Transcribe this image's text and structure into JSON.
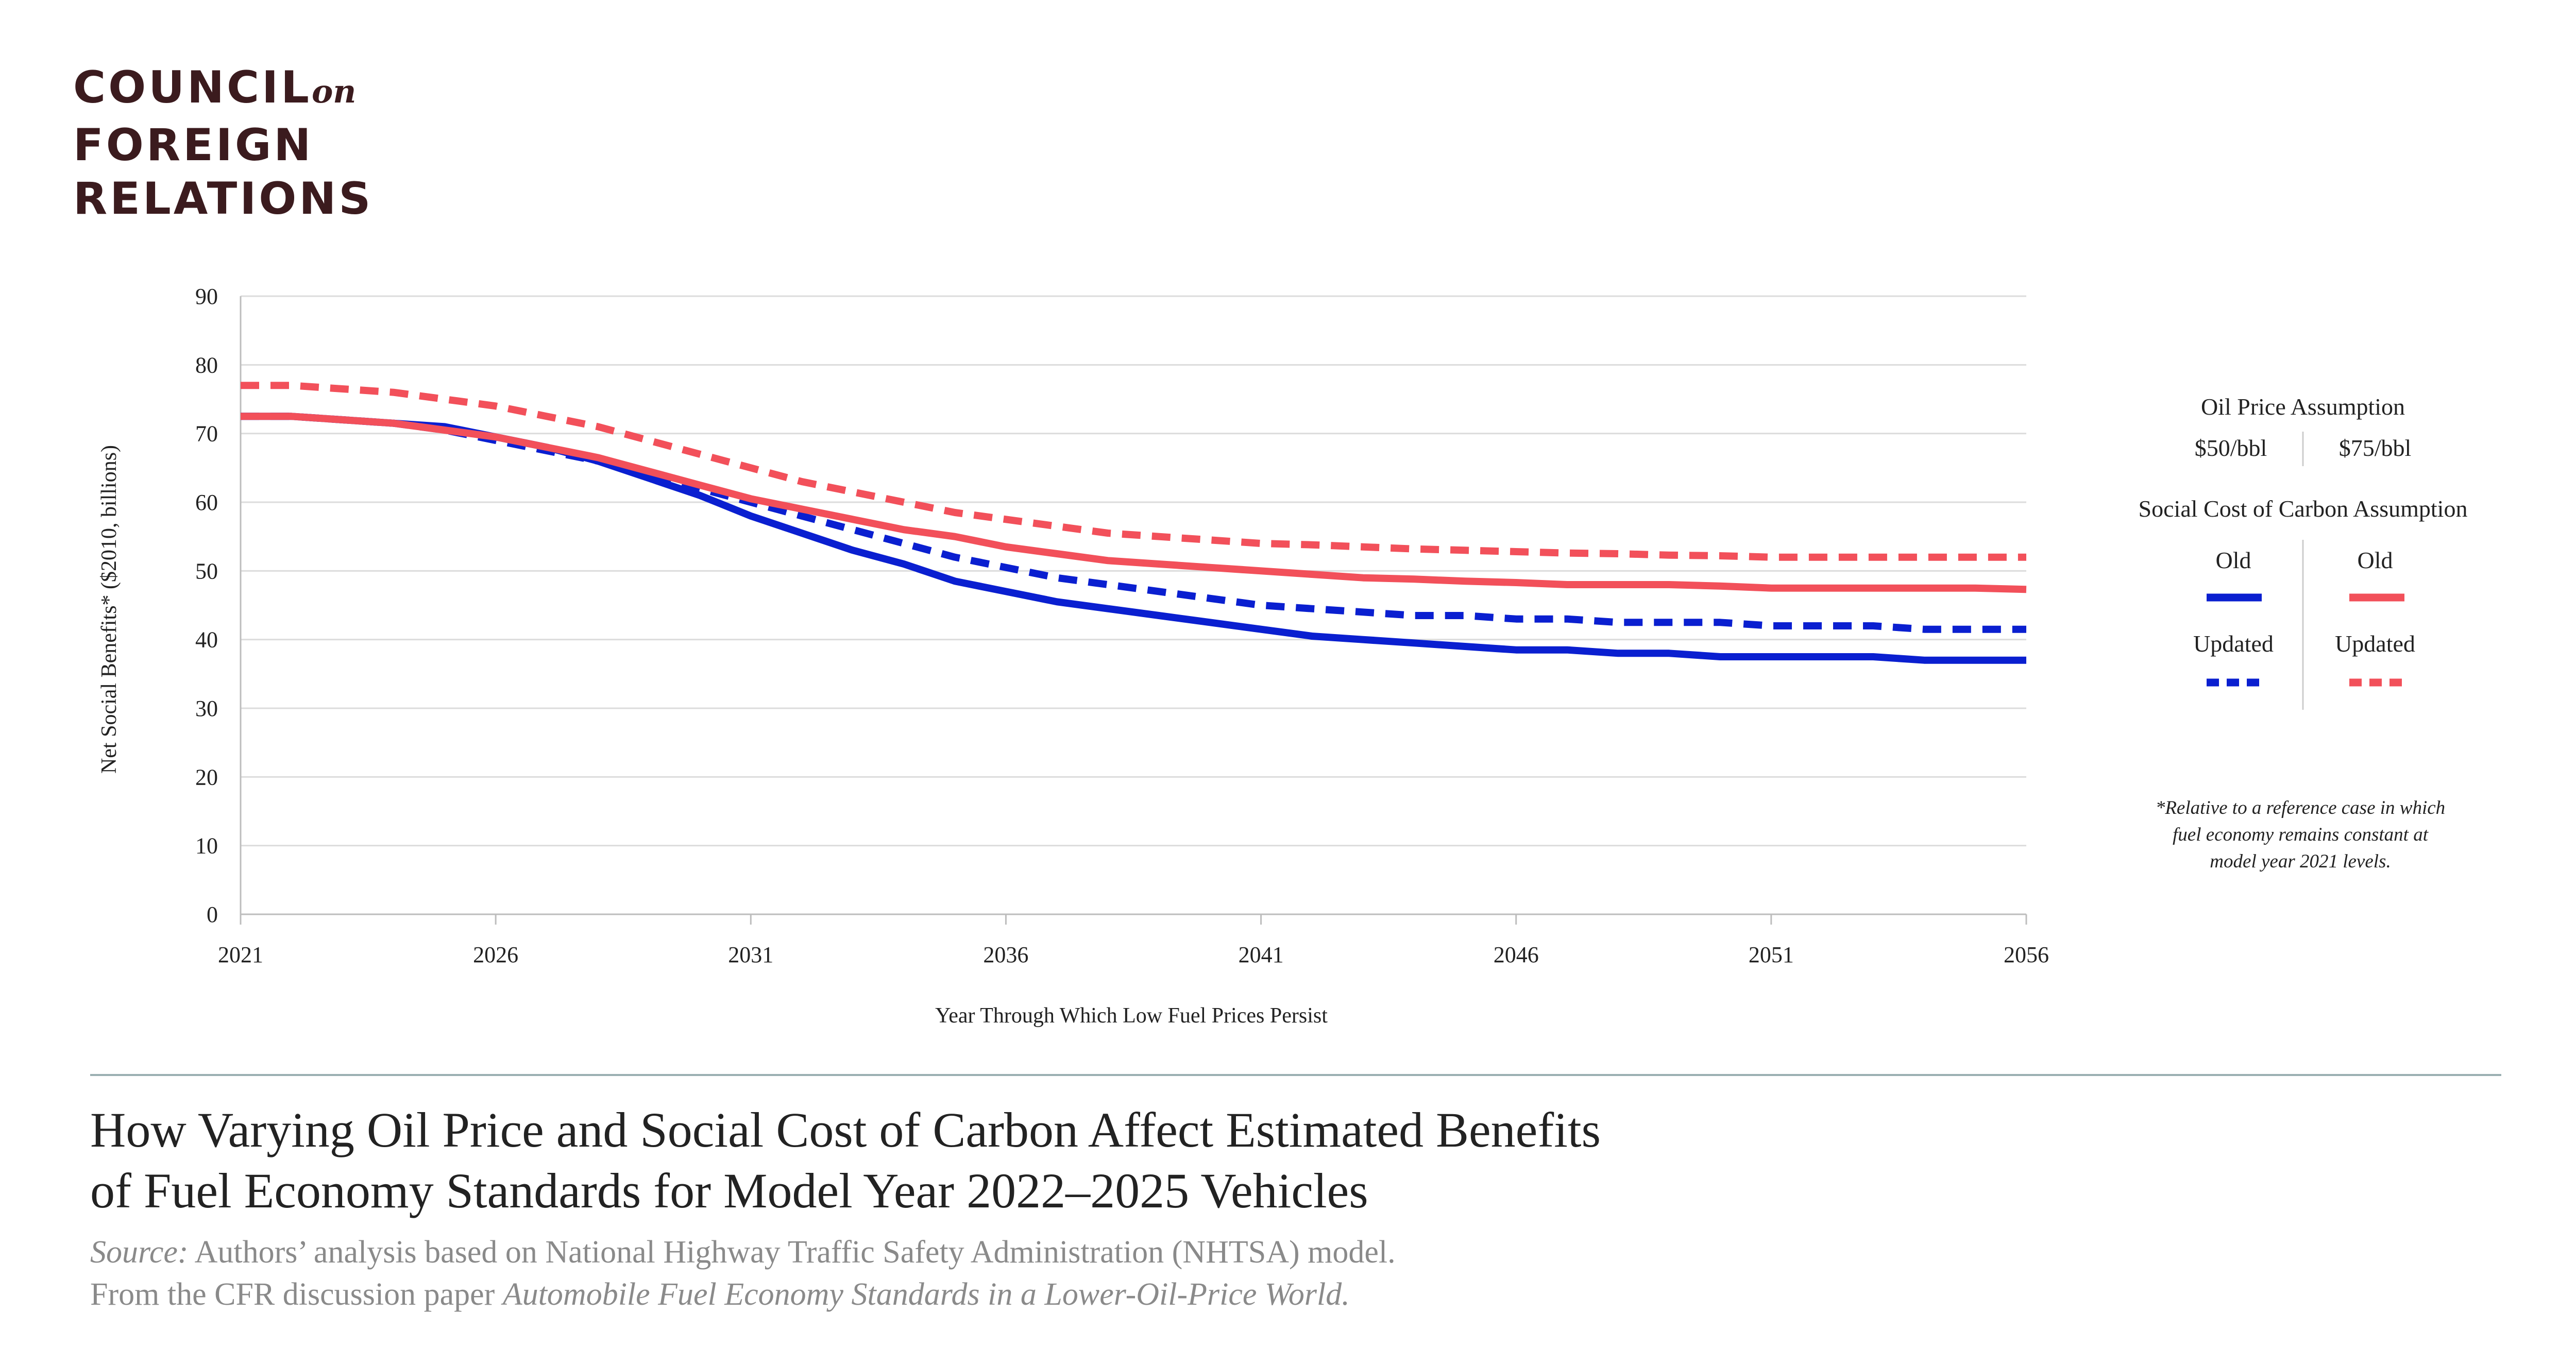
{
  "logo": {
    "line1": "COUNCIL",
    "line1_suffix": "on",
    "line2": "FOREIGN",
    "line3": "RELATIONS"
  },
  "title_line1": "How Varying Oil Price and Social Cost of Carbon Affect Estimated Benefits",
  "title_line2": "of Fuel Economy Standards for Model Year 2022–2025 Vehicles",
  "source": {
    "label": "Source:",
    "text": "Authors’ analysis based on National Highway Traffic Safety Administration (NHTSA) model.",
    "line2_prefix": "From the CFR discussion paper",
    "line2_title": "Automobile Fuel Economy Standards in a Lower-Oil-Price World."
  },
  "legend": {
    "oil_title": "Oil Price Assumption",
    "oil_col1": "$50/bbl",
    "oil_col2": "$75/bbl",
    "scc_title": "Social Cost of Carbon Assumption",
    "old": "Old",
    "updated": "Updated"
  },
  "footnote": [
    "*Relative to a reference case in which",
    "fuel economy remains constant at",
    "model year 2021 levels."
  ],
  "colors": {
    "blue": "#0a1fd0",
    "red": "#f2505a",
    "grid": "#dcdcdc",
    "axis": "#bdbdbd"
  },
  "chart_data": {
    "type": "line",
    "xlabel": "Year Through Which Low Fuel Prices Persist",
    "ylabel": "Net Social Benefits* ($2010, billions)",
    "xlim": [
      2021,
      2056
    ],
    "ylim": [
      0,
      90
    ],
    "xticks": [
      2021,
      2026,
      2031,
      2036,
      2041,
      2046,
      2051,
      2056
    ],
    "yticks": [
      0,
      10,
      20,
      30,
      40,
      50,
      60,
      70,
      80,
      90
    ],
    "grid": true,
    "legend_position": "right",
    "series": [
      {
        "oil": "$50/bbl",
        "carbon": "Old",
        "color": "#0a1fd0",
        "dash": false,
        "x": [
          2021,
          2022,
          2023,
          2024,
          2025,
          2026,
          2027,
          2028,
          2029,
          2030,
          2031,
          2032,
          2033,
          2034,
          2035,
          2036,
          2037,
          2038,
          2039,
          2040,
          2041,
          2042,
          2043,
          2044,
          2045,
          2046,
          2047,
          2048,
          2049,
          2050,
          2051,
          2052,
          2053,
          2054,
          2055,
          2056
        ],
        "y": [
          72.5,
          72.5,
          72,
          71.5,
          71,
          69.5,
          68,
          66,
          63.5,
          61,
          58,
          55.5,
          53,
          51,
          48.5,
          47,
          45.5,
          44.5,
          43.5,
          42.5,
          41.5,
          40.5,
          40,
          39.5,
          39,
          38.5,
          38.5,
          38,
          38,
          37.5,
          37.5,
          37.5,
          37.5,
          37,
          37,
          37
        ]
      },
      {
        "oil": "$50/bbl",
        "carbon": "Updated",
        "color": "#0a1fd0",
        "dash": true,
        "x": [
          2021,
          2022,
          2023,
          2024,
          2025,
          2026,
          2027,
          2028,
          2029,
          2030,
          2031,
          2032,
          2033,
          2034,
          2035,
          2036,
          2037,
          2038,
          2039,
          2040,
          2041,
          2042,
          2043,
          2044,
          2045,
          2046,
          2047,
          2048,
          2049,
          2050,
          2051,
          2052,
          2053,
          2054,
          2055,
          2056
        ],
        "y": [
          72.5,
          72.5,
          72,
          71.5,
          70.5,
          69,
          67.5,
          66,
          64,
          62,
          60,
          58,
          56,
          54,
          52,
          50.5,
          49,
          48,
          47,
          46,
          45,
          44.5,
          44,
          43.5,
          43.5,
          43,
          43,
          42.5,
          42.5,
          42.5,
          42,
          42,
          42,
          41.5,
          41.5,
          41.5
        ]
      },
      {
        "oil": "$75/bbl",
        "carbon": "Old",
        "color": "#f2505a",
        "dash": false,
        "x": [
          2021,
          2022,
          2023,
          2024,
          2025,
          2026,
          2027,
          2028,
          2029,
          2030,
          2031,
          2032,
          2033,
          2034,
          2035,
          2036,
          2037,
          2038,
          2039,
          2040,
          2041,
          2042,
          2043,
          2044,
          2045,
          2046,
          2047,
          2048,
          2049,
          2050,
          2051,
          2052,
          2053,
          2054,
          2055,
          2056
        ],
        "y": [
          72.5,
          72.5,
          72,
          71.5,
          70.5,
          69.5,
          68,
          66.5,
          64.5,
          62.5,
          60.5,
          59,
          57.5,
          56,
          55,
          53.5,
          52.5,
          51.5,
          51,
          50.5,
          50,
          49.5,
          49,
          48.8,
          48.5,
          48.3,
          48,
          48,
          48,
          47.8,
          47.5,
          47.5,
          47.5,
          47.5,
          47.5,
          47.3
        ]
      },
      {
        "oil": "$75/bbl",
        "carbon": "Updated",
        "color": "#f2505a",
        "dash": true,
        "x": [
          2021,
          2022,
          2023,
          2024,
          2025,
          2026,
          2027,
          2028,
          2029,
          2030,
          2031,
          2032,
          2033,
          2034,
          2035,
          2036,
          2037,
          2038,
          2039,
          2040,
          2041,
          2042,
          2043,
          2044,
          2045,
          2046,
          2047,
          2048,
          2049,
          2050,
          2051,
          2052,
          2053,
          2054,
          2055,
          2056
        ],
        "y": [
          77,
          77,
          76.5,
          76,
          75,
          74,
          72.5,
          71,
          69,
          67,
          65,
          63,
          61.5,
          60,
          58.5,
          57.5,
          56.5,
          55.5,
          55,
          54.5,
          54,
          53.8,
          53.5,
          53.2,
          53,
          52.8,
          52.6,
          52.5,
          52.3,
          52.2,
          52,
          52,
          52,
          52,
          52,
          52
        ]
      }
    ]
  }
}
